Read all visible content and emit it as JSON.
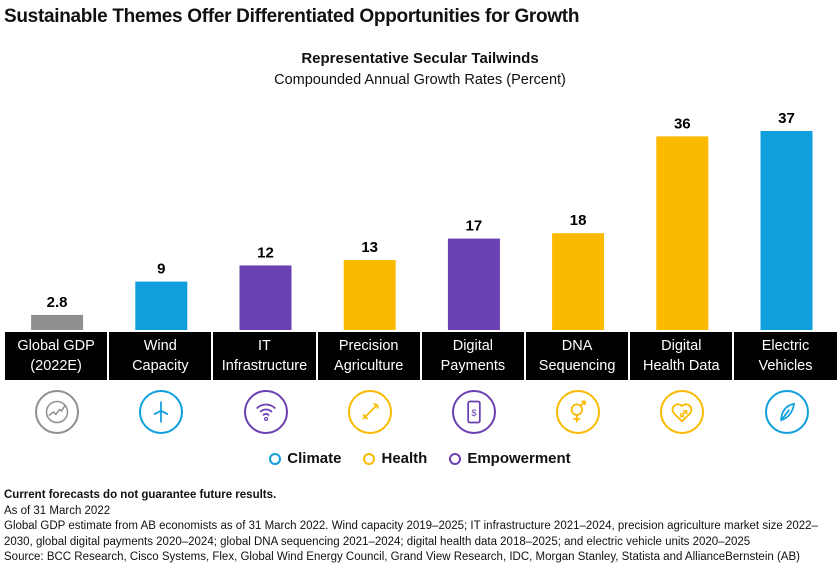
{
  "title": "Sustainable Themes Offer Differentiated Opportunities for Growth",
  "chart_data": {
    "type": "bar",
    "title": "Representative Secular Tailwinds",
    "subtitle": "Compounded Annual Growth Rates (Percent)",
    "categories": [
      {
        "line1": "Global GDP",
        "line2": "(2022E)",
        "value": 2.8,
        "label": "2.8",
        "theme": "none",
        "icon": "globe-icon"
      },
      {
        "line1": "Wind",
        "line2": "Capacity",
        "value": 9,
        "label": "9",
        "theme": "climate",
        "icon": "wind-turbine-icon"
      },
      {
        "line1": "IT",
        "line2": "Infrastructure",
        "value": 12,
        "label": "12",
        "theme": "empowerment",
        "icon": "wifi-icon"
      },
      {
        "line1": "Precision",
        "line2": "Agriculture",
        "value": 13,
        "label": "13",
        "theme": "health",
        "icon": "target-icon"
      },
      {
        "line1": "Digital",
        "line2": "Payments",
        "value": 17,
        "label": "17",
        "theme": "empowerment",
        "icon": "mobile-payment-icon"
      },
      {
        "line1": "DNA",
        "line2": "Sequencing",
        "value": 18,
        "label": "18",
        "theme": "health",
        "icon": "gender-icon"
      },
      {
        "line1": "Digital",
        "line2": "Health Data",
        "value": 36,
        "label": "36",
        "theme": "health",
        "icon": "heart-plus-icon"
      },
      {
        "line1": "Electric",
        "line2": "Vehicles",
        "value": 37,
        "label": "37",
        "theme": "climate",
        "icon": "leaf-icon"
      }
    ],
    "ylim": [
      0,
      37
    ],
    "colors": {
      "none": "#8f8f8f",
      "climate": "#0f9fdc",
      "health": "#fbb900",
      "empowerment": "#6a40b2"
    },
    "legend": [
      {
        "label": "Climate",
        "theme": "climate"
      },
      {
        "label": "Health",
        "theme": "health"
      },
      {
        "label": "Empowerment",
        "theme": "empowerment"
      }
    ],
    "legend_position": "bottom"
  },
  "notes": {
    "disclaimer": "Current forecasts do not guarantee future results.",
    "as_of": "As of 31 March 2022",
    "detail": "Global GDP estimate from AB economists as of 31 March 2022. Wind capacity 2019–2025; IT infrastructure 2021–2024, precision agriculture market size 2022–2030, global digital payments 2020–2024; global DNA sequencing 2021–2024; digital health data 2018–2025; and electric vehicle units 2020–2025",
    "source": "Source: BCC Research, Cisco Systems, Flex, Global Wind Energy Council, Grand View Research, IDC, Morgan Stanley, Statista and AllianceBernstein (AB)"
  }
}
